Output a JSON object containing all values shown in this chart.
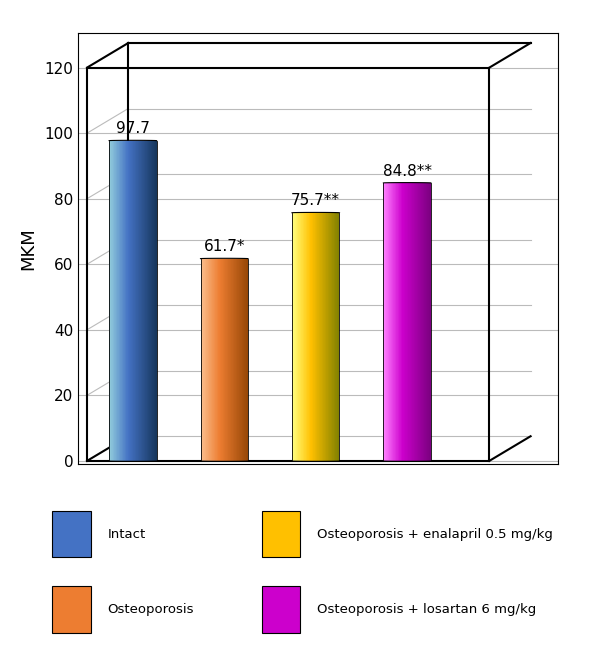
{
  "values": [
    97.7,
    61.7,
    75.7,
    84.8
  ],
  "labels": [
    "97.7",
    "61.7*",
    "75.7**",
    "84.8**"
  ],
  "colors_main": [
    "#4472C4",
    "#ED7D31",
    "#FFC000",
    "#CC00CC"
  ],
  "colors_light": [
    "#92CDDC",
    "#FAC090",
    "#FFFF80",
    "#FF80FF"
  ],
  "colors_dark": [
    "#17375E",
    "#974706",
    "#808000",
    "#7B0080"
  ],
  "colors_top_light": [
    "#B8CCE4",
    "#FCD5B4",
    "#FFFF99",
    "#FF99FF"
  ],
  "ylabel": "MKM",
  "ylim": [
    0,
    120
  ],
  "yticks": [
    0,
    20,
    40,
    60,
    80,
    100,
    120
  ],
  "legend_labels": [
    "Intact",
    "Osteoporosis",
    "Osteoporosis + enalapril 0.5 mg/kg",
    "Osteoporosis + losartan 6 mg/kg"
  ],
  "background_color": "#FFFFFF",
  "label_fontsize": 12,
  "tick_fontsize": 11,
  "value_fontsize": 11
}
